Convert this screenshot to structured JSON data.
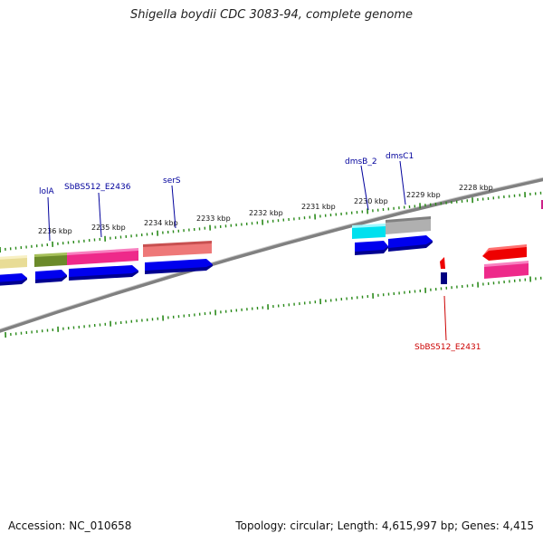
{
  "title": "Shigella boydii CDC 3083-94, complete genome",
  "footer": {
    "accession": "Accession: NC_010658",
    "topology": "Topology: circular; Length: 4,615,997 bp; Genes: 4,415"
  },
  "kbp_labels": [
    "2236 kbp",
    "2235 kbp",
    "2234 kbp",
    "2233 kbp",
    "2232 kbp",
    "2231 kbp",
    "2230 kbp",
    "2229 kbp",
    "2228 kbp"
  ],
  "gene_labels": {
    "forward": [
      "lolA",
      "SbBS512_E2436",
      "serS",
      "dmsB_2",
      "dmsC1"
    ],
    "reverse": [
      "SbBS512_E2431"
    ]
  },
  "colors": {
    "backbone": "#808080",
    "tick": "#2a8a1a",
    "forward_label": "#00009c",
    "reverse_label": "#cc0000",
    "cds": "#0000ee",
    "olive": "#6b8a2a",
    "khaki": "#e8dc96",
    "pink": "#ee2a8a",
    "salmon": "#ee7878",
    "cyan": "#00e0ee",
    "grey": "#b0b0b0",
    "red": "#ee0000",
    "navy": "#000080"
  }
}
